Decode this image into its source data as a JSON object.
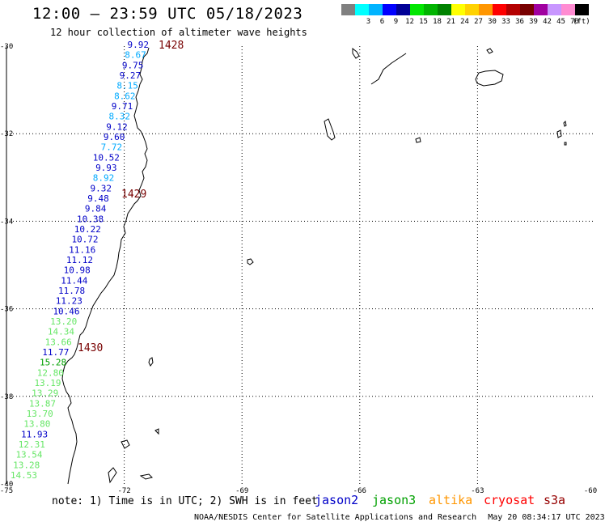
{
  "header": {
    "title": "12:00 – 23:59 UTC 05/18/2023",
    "subtitle": "12 hour collection of altimeter wave heights"
  },
  "scale": {
    "unit_label": "(ft)",
    "bins": [
      {
        "color": "#808080",
        "label": ""
      },
      {
        "color": "#00ffff",
        "label": "3"
      },
      {
        "color": "#00b4ff",
        "label": "6"
      },
      {
        "color": "#0000ff",
        "label": "9"
      },
      {
        "color": "#000096",
        "label": "12"
      },
      {
        "color": "#00e600",
        "label": "15"
      },
      {
        "color": "#00b400",
        "label": "18"
      },
      {
        "color": "#008200",
        "label": "21"
      },
      {
        "color": "#ffff00",
        "label": "24"
      },
      {
        "color": "#ffd200",
        "label": "27"
      },
      {
        "color": "#ff9600",
        "label": "30"
      },
      {
        "color": "#ff0000",
        "label": "33"
      },
      {
        "color": "#b40000",
        "label": "36"
      },
      {
        "color": "#780000",
        "label": "39"
      },
      {
        "color": "#a000a0",
        "label": "42"
      },
      {
        "color": "#c896ff",
        "label": "45"
      },
      {
        "color": "#ff8cd2",
        "label": "70"
      },
      {
        "color": "#000000",
        "label": ""
      }
    ]
  },
  "map": {
    "lon_ticks": [
      "-75",
      "-72",
      "-69",
      "-66",
      "-63",
      "-60"
    ],
    "lat_ticks": [
      "-30",
      "-32",
      "-34",
      "-36",
      "-38",
      "-40"
    ],
    "lon_range": [
      -75,
      -60
    ],
    "lat_range": [
      -30,
      -40
    ],
    "pass_times": [
      "1428",
      "1429",
      "1430"
    ],
    "pass_time_color": "#780000",
    "readings": [
      {
        "value": "9.92",
        "color": "#0000c8"
      },
      {
        "value": "8.67",
        "color": "#00aaff"
      },
      {
        "value": "9.75",
        "color": "#0000c8"
      },
      {
        "value": "9.27",
        "color": "#0000c8"
      },
      {
        "value": "8.15",
        "color": "#00aaff"
      },
      {
        "value": "8.62",
        "color": "#00aaff"
      },
      {
        "value": "9.71",
        "color": "#0000c8"
      },
      {
        "value": "8.32",
        "color": "#00aaff"
      },
      {
        "value": "9.12",
        "color": "#0000c8"
      },
      {
        "value": "9.60",
        "color": "#0000c8"
      },
      {
        "value": "7.72",
        "color": "#00aaff"
      },
      {
        "value": "10.52",
        "color": "#0000c8"
      },
      {
        "value": "9.93",
        "color": "#0000c8"
      },
      {
        "value": "8.92",
        "color": "#00aaff"
      },
      {
        "value": "9.32",
        "color": "#0000c8"
      },
      {
        "value": "9.48",
        "color": "#0000c8"
      },
      {
        "value": "9.84",
        "color": "#0000c8"
      },
      {
        "value": "10.38",
        "color": "#0000c8"
      },
      {
        "value": "10.22",
        "color": "#0000c8"
      },
      {
        "value": "10.72",
        "color": "#0000c8"
      },
      {
        "value": "11.16",
        "color": "#0000c8"
      },
      {
        "value": "11.12",
        "color": "#0000c8"
      },
      {
        "value": "10.98",
        "color": "#0000c8"
      },
      {
        "value": "11.44",
        "color": "#0000c8"
      },
      {
        "value": "11.78",
        "color": "#0000c8"
      },
      {
        "value": "11.23",
        "color": "#0000c8"
      },
      {
        "value": "10.46",
        "color": "#0000c8"
      },
      {
        "value": "13.20",
        "color": "#66e666"
      },
      {
        "value": "14.34",
        "color": "#66e666"
      },
      {
        "value": "13.66",
        "color": "#66e666"
      },
      {
        "value": "11.77",
        "color": "#0000c8"
      },
      {
        "value": "15.28",
        "color": "#00a000"
      },
      {
        "value": "12.80",
        "color": "#66e666"
      },
      {
        "value": "13.19",
        "color": "#66e666"
      },
      {
        "value": "13.29",
        "color": "#66e666"
      },
      {
        "value": "13.87",
        "color": "#66e666"
      },
      {
        "value": "13.70",
        "color": "#66e666"
      },
      {
        "value": "13.80",
        "color": "#66e666"
      },
      {
        "value": "11.93",
        "color": "#0000c8"
      },
      {
        "value": "12.31",
        "color": "#66e666"
      },
      {
        "value": "13.54",
        "color": "#66e666"
      },
      {
        "value": "13.28",
        "color": "#66e666"
      },
      {
        "value": "14.53",
        "color": "#66e666"
      }
    ]
  },
  "footer": {
    "note": "note: 1) Time is in UTC; 2) SWH is in feet",
    "satellites": [
      {
        "name": "jason2",
        "color": "#0000c8"
      },
      {
        "name": "jason3",
        "color": "#00a000"
      },
      {
        "name": "altika",
        "color": "#ff9600"
      },
      {
        "name": "cryosat",
        "color": "#ff0000"
      },
      {
        "name": "s3a",
        "color": "#960000"
      }
    ],
    "credit": "NOAA/NESDIS Center for Satellite Applications and Research",
    "timestamp": "May 20 08:34:17 UTC 2023"
  }
}
